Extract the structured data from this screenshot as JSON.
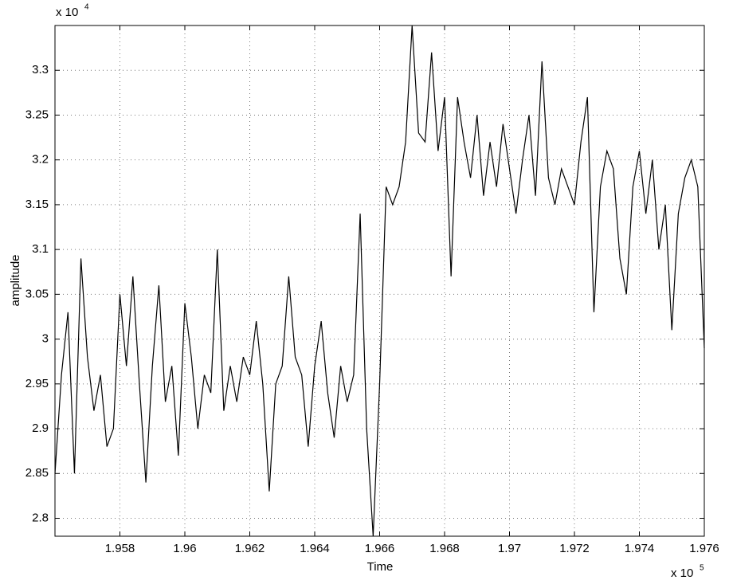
{
  "chart_data": {
    "type": "line",
    "xlabel": "Time",
    "ylabel": "amplitude",
    "x_multiplier": {
      "base": "x 10",
      "exponent": "5"
    },
    "y_multiplier": {
      "base": "x 10",
      "exponent": "4"
    },
    "x": [
      1.956,
      1.9562,
      1.9564,
      1.9566,
      1.9568,
      1.957,
      1.9572,
      1.9574,
      1.9576,
      1.9578,
      1.958,
      1.9582,
      1.9584,
      1.9586,
      1.9588,
      1.959,
      1.9592,
      1.9594,
      1.9596,
      1.9598,
      1.96,
      1.9602,
      1.9604,
      1.9606,
      1.9608,
      1.961,
      1.9612,
      1.9614,
      1.9616,
      1.9618,
      1.962,
      1.9622,
      1.9624,
      1.9626,
      1.9628,
      1.963,
      1.9632,
      1.9634,
      1.9636,
      1.9638,
      1.964,
      1.9642,
      1.9644,
      1.9646,
      1.9648,
      1.965,
      1.9652,
      1.9654,
      1.9656,
      1.9658,
      1.966,
      1.9662,
      1.9664,
      1.9666,
      1.9668,
      1.967,
      1.9672,
      1.9674,
      1.9676,
      1.9678,
      1.968,
      1.9682,
      1.9684,
      1.9686,
      1.9688,
      1.969,
      1.9692,
      1.9694,
      1.9696,
      1.9698,
      1.97,
      1.9702,
      1.9704,
      1.9706,
      1.9708,
      1.971,
      1.9712,
      1.9714,
      1.9716,
      1.9718,
      1.972,
      1.9722,
      1.9724,
      1.9726,
      1.9728,
      1.973,
      1.9732,
      1.9734,
      1.9736,
      1.9738,
      1.974,
      1.9742,
      1.9744,
      1.9746,
      1.9748,
      1.975,
      1.9752,
      1.9754,
      1.9756,
      1.9758,
      1.976
    ],
    "series": [
      {
        "color": "#000000",
        "values": [
          2.85,
          2.96,
          3.03,
          2.85,
          3.09,
          2.98,
          2.92,
          2.96,
          2.88,
          2.9,
          3.05,
          2.97,
          3.07,
          2.95,
          2.84,
          2.97,
          3.06,
          2.93,
          2.97,
          2.87,
          3.04,
          2.98,
          2.9,
          2.96,
          2.94,
          3.1,
          2.92,
          2.97,
          2.93,
          2.98,
          2.96,
          3.02,
          2.95,
          2.83,
          2.95,
          2.97,
          3.07,
          2.98,
          2.96,
          2.88,
          2.97,
          3.02,
          2.94,
          2.89,
          2.97,
          2.93,
          2.96,
          3.14,
          2.9,
          2.78,
          2.95,
          3.17,
          3.15,
          3.17,
          3.22,
          3.35,
          3.23,
          3.22,
          3.32,
          3.21,
          3.27,
          3.07,
          3.27,
          3.22,
          3.18,
          3.25,
          3.16,
          3.22,
          3.17,
          3.24,
          3.19,
          3.14,
          3.2,
          3.25,
          3.16,
          3.31,
          3.18,
          3.15,
          3.19,
          3.17,
          3.15,
          3.22,
          3.27,
          3.03,
          3.17,
          3.21,
          3.19,
          3.09,
          3.05,
          3.17,
          3.21,
          3.14,
          3.2,
          3.1,
          3.15,
          3.01,
          3.14,
          3.18,
          3.2,
          3.17,
          2.99
        ]
      }
    ],
    "xlim": [
      1.956,
      1.976
    ],
    "xticks": [
      1.958,
      1.96,
      1.962,
      1.964,
      1.966,
      1.968,
      1.97,
      1.972,
      1.974,
      1.976
    ],
    "ylim": [
      2.78,
      3.35
    ],
    "yticks": [
      2.8,
      2.85,
      2.9,
      2.95,
      3,
      3.05,
      3.1,
      3.15,
      3.2,
      3.25,
      3.3
    ],
    "grid": true
  }
}
